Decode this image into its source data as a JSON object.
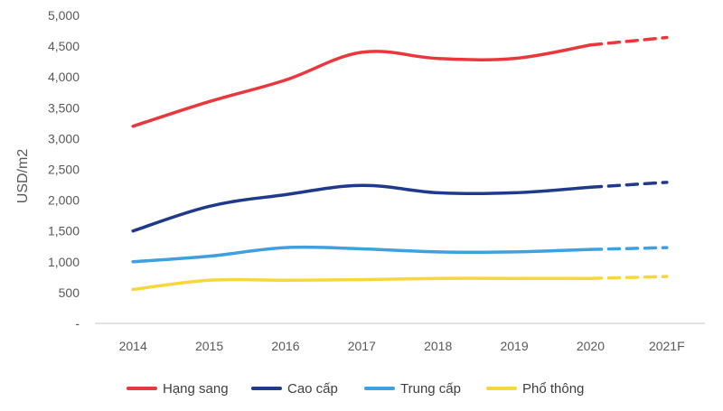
{
  "chart_data": {
    "type": "line",
    "ylabel": "USD/m2",
    "ylim": [
      0,
      5000
    ],
    "yticks": [
      0,
      500,
      1000,
      1500,
      2000,
      2500,
      3000,
      3500,
      4000,
      4500,
      5000
    ],
    "ytick_labels": [
      "-",
      "500",
      "1,000",
      "1,500",
      "2,000",
      "2,500",
      "3,000",
      "3,500",
      "4,000",
      "4,500",
      "5,000"
    ],
    "categories": [
      "2014",
      "2015",
      "2016",
      "2017",
      "2018",
      "2019",
      "2020",
      "2021F"
    ],
    "forecast_from_index": 6,
    "grid": false,
    "legend_position": "bottom",
    "series": [
      {
        "name": "Hạng sang",
        "color": "#e8383b",
        "values": [
          3200,
          3600,
          3950,
          4400,
          4300,
          4300,
          4520,
          4640
        ]
      },
      {
        "name": "Cao cấp",
        "color": "#1f3a8a",
        "values": [
          1500,
          1900,
          2090,
          2240,
          2120,
          2120,
          2210,
          2290
        ]
      },
      {
        "name": "Trung cấp",
        "color": "#3fa0e0",
        "values": [
          1000,
          1090,
          1230,
          1210,
          1160,
          1160,
          1200,
          1230
        ]
      },
      {
        "name": "Phổ thông",
        "color": "#f7d73a",
        "values": [
          550,
          700,
          700,
          710,
          730,
          730,
          730,
          760
        ]
      }
    ]
  }
}
